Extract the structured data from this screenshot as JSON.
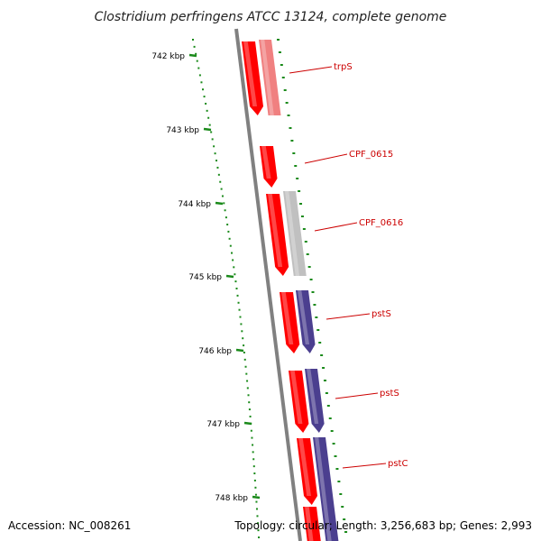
{
  "title": "Clostridium perfringens ATCC 13124, complete genome",
  "footer": {
    "accession": "Accession: NC_008261",
    "stats": "Topology: circular; Length: 3,256,683 bp; Genes: 2,993"
  },
  "scale": {
    "unit_label_suffix": " kbp",
    "ticks": [
      {
        "kbp": 742,
        "label": "742 kbp"
      },
      {
        "kbp": 743,
        "label": "743 kbp"
      },
      {
        "kbp": 744,
        "label": "744 kbp"
      },
      {
        "kbp": 745,
        "label": "745 kbp"
      },
      {
        "kbp": 746,
        "label": "746 kbp"
      },
      {
        "kbp": 747,
        "label": "747 kbp"
      },
      {
        "kbp": 748,
        "label": "748 kbp"
      }
    ]
  },
  "genes": [
    {
      "label": "trpS"
    },
    {
      "label": "CPF_0615"
    },
    {
      "label": "CPF_0616"
    },
    {
      "label": "pstS"
    },
    {
      "label": "pstS"
    },
    {
      "label": "pstC"
    }
  ],
  "colors": {
    "backbone": "#808080",
    "cds": "#ff0000",
    "trpS_track": "#f08080",
    "cpf0616_track": "#c0c0c0",
    "pst_track": "#4b3f8f",
    "scale_green": "#1a8a1a",
    "label_red": "#cc0000"
  }
}
